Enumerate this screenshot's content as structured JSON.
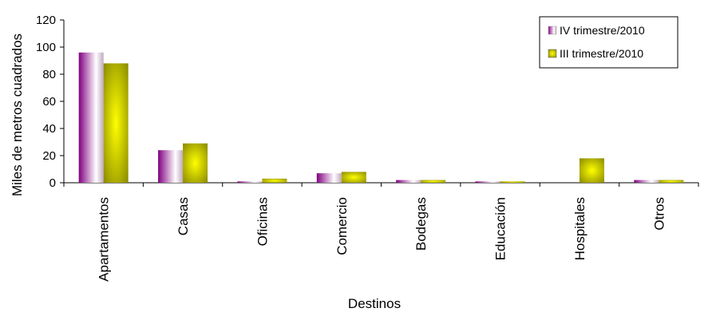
{
  "chart_data": {
    "type": "bar",
    "title": "",
    "xlabel": "Destinos",
    "ylabel": "Miles de metros cuadrados",
    "ylim": [
      0,
      120
    ],
    "yticks": [
      0,
      20,
      40,
      60,
      80,
      100,
      120
    ],
    "grid": false,
    "legend_position": "top-right",
    "categories": [
      "Apartamentos",
      "Casas",
      "Oficinas",
      "Comercio",
      "Bodegas",
      "Educación",
      "Hospitales",
      "Otros"
    ],
    "series": [
      {
        "name": "IV trimestre/2010",
        "values": [
          96,
          24,
          1,
          7,
          2,
          1,
          0,
          2
        ],
        "color_dark": "#800080",
        "color_light": "#ffffff"
      },
      {
        "name": "III trimestre/2010",
        "values": [
          88,
          29,
          3,
          8,
          2,
          1,
          18,
          2
        ],
        "color_dark": "#808000",
        "color_light": "#ffff00"
      }
    ]
  }
}
